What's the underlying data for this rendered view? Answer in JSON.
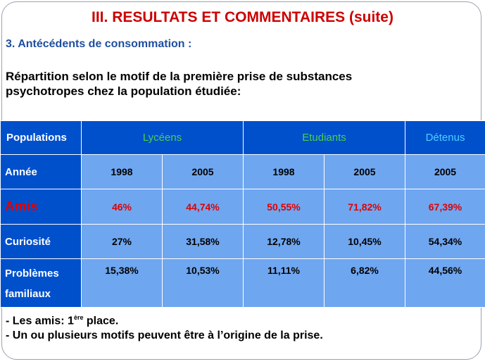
{
  "slide": {
    "title": "III. RESULTATS ET COMMENTAIRES (suite)",
    "subtitle": "3. Antécédents de consommation :",
    "intro_line1": "Répartition selon le motif de la première prise de substances",
    "intro_line2": "psychotropes chez la population étudiée:"
  },
  "table": {
    "header": {
      "populations": "Populations",
      "lyceens": "Lycéens",
      "etudiants": "Etudiants",
      "detenus": "Détenus"
    },
    "rows": [
      {
        "label": "Année",
        "cells": [
          "1998",
          "2005",
          "1998",
          "2005",
          "2005"
        ]
      },
      {
        "label": "Amis",
        "cells": [
          "46%",
          "44,74%",
          "50,55%",
          "71,82%",
          "67,39%"
        ]
      },
      {
        "label": "Curiosité",
        "cells": [
          "27%",
          "31,58%",
          "12,78%",
          "10,45%",
          "54,34%"
        ]
      },
      {
        "label_line1": "Problèmes",
        "label_line2": "familiaux",
        "cells": [
          "15,38%",
          "10,53%",
          "11,11%",
          "6,82%",
          "44,56%"
        ]
      }
    ]
  },
  "notes": {
    "line1_prefix": "- Les amis:  1",
    "line1_sup": "ère",
    "line1_suffix": " place.",
    "line2": "- Un ou plusieurs motifs peuvent être à l’origine de la prise."
  },
  "colors": {
    "title": "#cc0000",
    "subtitle": "#1f4fa0",
    "header_bg": "#0050cc",
    "cell_bg": "#6fa6f0",
    "group_green": "#4ad14a",
    "group_cyan": "#4ad1ff",
    "highlight_red": "#e00000"
  }
}
